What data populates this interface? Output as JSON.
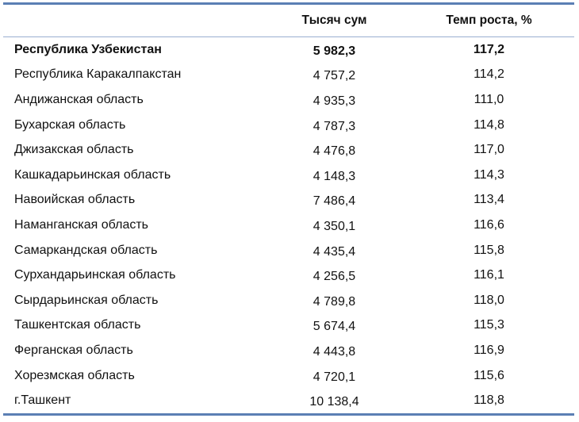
{
  "table": {
    "headers": {
      "region": "",
      "value": "Тысяч сум",
      "rate": "Темп роста, %"
    },
    "rows": [
      {
        "name": "Республика Узбекистан",
        "value": "5 982,3",
        "rate": "117,2",
        "bold": true
      },
      {
        "name": "Республика Каракалпакстан",
        "value": "4 757,2",
        "rate": "114,2"
      },
      {
        "name": "Андижанская область",
        "value": "4 935,3",
        "rate": "111,0"
      },
      {
        "name": "Бухарская область",
        "value": "4 787,3",
        "rate": "114,8"
      },
      {
        "name": "Джизакская область",
        "value": "4 476,8",
        "rate": "117,0"
      },
      {
        "name": "Кашкадарьинская область",
        "value": "4 148,3",
        "rate": "114,3"
      },
      {
        "name": "Навоийская область",
        "value": "7 486,4",
        "rate": "113,4"
      },
      {
        "name": "Наманганская область",
        "value": "4 350,1",
        "rate": "116,6"
      },
      {
        "name": "Самаркандская область",
        "value": "4 435,4",
        "rate": "115,8"
      },
      {
        "name": "Сурхандарьинская область",
        "value": "4 256,5",
        "rate": "116,1"
      },
      {
        "name": "Сырдарьинская область",
        "value": "4 789,8",
        "rate": "118,0"
      },
      {
        "name": "Ташкентская область",
        "value": "5 674,4",
        "rate": "115,3"
      },
      {
        "name": "Ферганская область",
        "value": "4 443,8",
        "rate": "116,9"
      },
      {
        "name": "Хорезмская область",
        "value": "4 720,1",
        "rate": "115,6"
      },
      {
        "name": "г.Ташкент",
        "value": "10 138,4",
        "rate": "118,8"
      }
    ]
  },
  "colors": {
    "rule": "#5b7fb4"
  }
}
